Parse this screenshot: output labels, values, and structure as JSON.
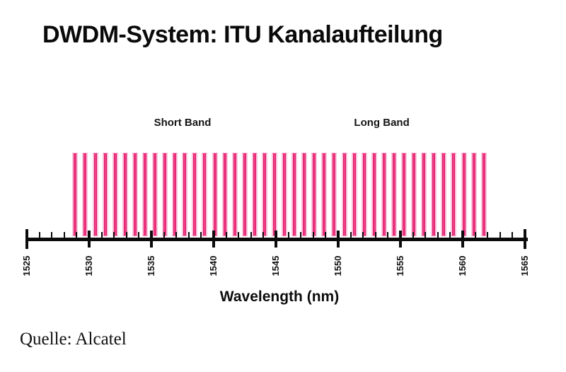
{
  "page": {
    "title": "DWDM-System: ITU Kanalaufteilung",
    "source_label": "Quelle:",
    "source_value": "Alcatel"
  },
  "chart_data": {
    "type": "bar",
    "title": "DWDM-System: ITU Kanalaufteilung",
    "xlabel": "Wavelength (nm)",
    "x_axis": {
      "min": 1525,
      "max": 1565,
      "major_tick_step": 5,
      "minor_tick_step": 1,
      "major_tick_labels": [
        "1525",
        "1530",
        "1535",
        "1540",
        "1545",
        "1550",
        "1555",
        "1560",
        "1565"
      ]
    },
    "bands": [
      {
        "label": "Short Band",
        "center_nm": 1537.5
      },
      {
        "label": "Long Band",
        "center_nm": 1553.5
      }
    ],
    "channel_spacing_nm": 0.8,
    "channels_nm": [
      1529.0,
      1529.8,
      1530.6,
      1531.4,
      1532.2,
      1533.0,
      1533.8,
      1534.6,
      1535.4,
      1536.2,
      1537.0,
      1537.8,
      1538.6,
      1539.4,
      1540.2,
      1541.0,
      1541.8,
      1542.6,
      1543.4,
      1544.2,
      1545.0,
      1545.8,
      1546.6,
      1547.4,
      1548.2,
      1549.0,
      1549.8,
      1550.6,
      1551.4,
      1552.2,
      1553.0,
      1553.8,
      1554.6,
      1555.4,
      1556.2,
      1557.0,
      1557.8,
      1558.6,
      1559.4,
      1560.2,
      1561.0,
      1561.8
    ],
    "bar_color": "#e8156b",
    "bar_edge_color": "#f9c3dc",
    "axis_color": "#0c0c0c"
  }
}
